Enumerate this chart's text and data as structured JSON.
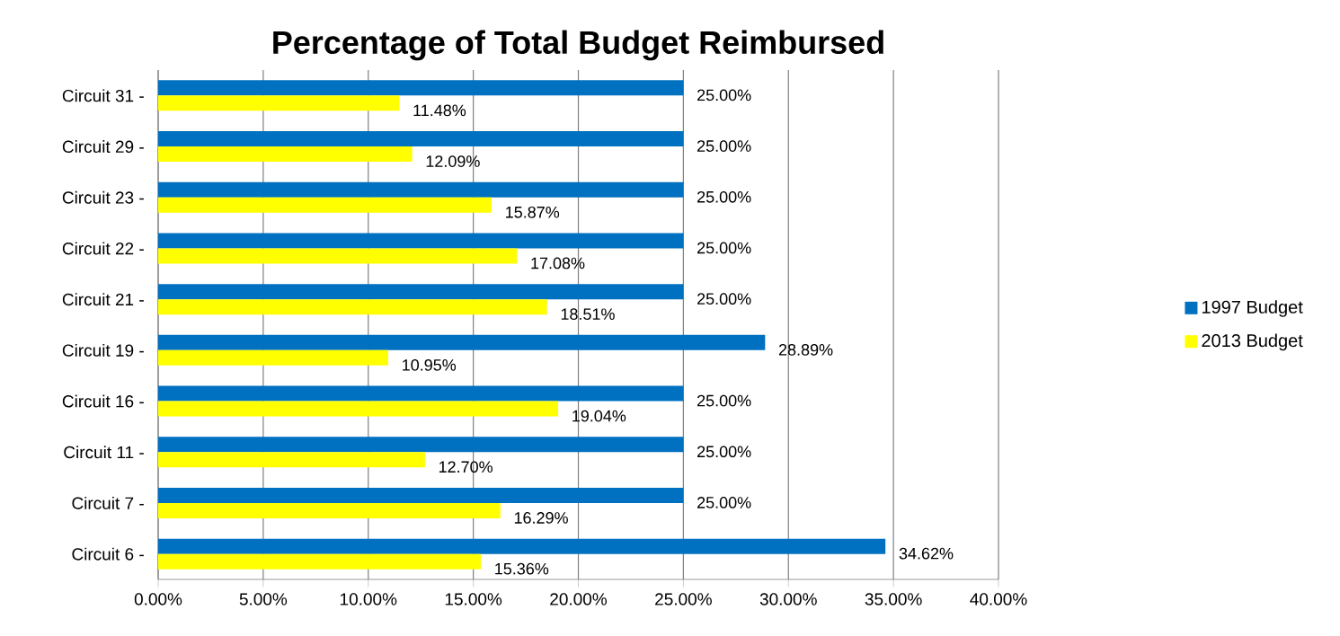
{
  "chart_data": {
    "type": "bar",
    "orientation": "horizontal",
    "title": "Percentage of Total Budget Reimbursed",
    "categories": [
      "Circuit 31 -",
      "Circuit 29 -",
      "Circuit 23 -",
      "Circuit 22 -",
      "Circuit 21 -",
      "Circuit 19 -",
      "Circuit 16 -",
      "Circuit 11 -",
      "Circuit 7 -",
      "Circuit 6 -"
    ],
    "series": [
      {
        "name": "1997 Budget",
        "color": "#0070c0",
        "values": [
          25,
          25,
          25,
          25,
          25,
          28.89,
          25,
          25,
          25,
          34.62
        ],
        "value_labels": [
          "25.00%",
          "25.00%",
          "25.00%",
          "25.00%",
          "25.00%",
          "28.89%",
          "25.00%",
          "25.00%",
          "25.00%",
          "34.62%"
        ]
      },
      {
        "name": "2013 Budget",
        "color": "#ffff00",
        "values": [
          11.48,
          12.09,
          15.87,
          17.08,
          18.51,
          10.95,
          19.04,
          12.7,
          16.29,
          15.36
        ],
        "value_labels": [
          "11.48%",
          "12.09%",
          "15.87%",
          "17.08%",
          "18.51%",
          "10.95%",
          "19.04%",
          "12.70%",
          "16.29%",
          "15.36%"
        ]
      }
    ],
    "xlim": [
      0,
      40
    ],
    "xticks": [
      {
        "value": 0,
        "label": "0.00%"
      },
      {
        "value": 5,
        "label": "5.00%"
      },
      {
        "value": 10,
        "label": "10.00%"
      },
      {
        "value": 15,
        "label": "15.00%"
      },
      {
        "value": 20,
        "label": "20.00%"
      },
      {
        "value": 25,
        "label": "25.00%"
      },
      {
        "value": 30,
        "label": "30.00%"
      },
      {
        "value": 35,
        "label": "35.00%"
      },
      {
        "value": 40,
        "label": "40.00%"
      }
    ],
    "grid": "x",
    "legend": "right"
  }
}
